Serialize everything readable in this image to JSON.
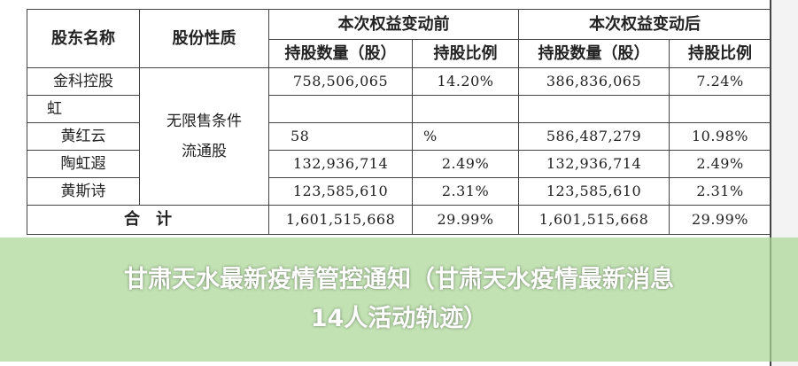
{
  "table": {
    "headers": {
      "name": "股东名称",
      "nature": "股份性质",
      "before": "本次权益变动前",
      "after": "本次权益变动后",
      "shares": "持股数量（股）",
      "ratio": "持股比例"
    },
    "nature_value_line1": "无限售条件",
    "nature_value_line2": "流通股",
    "rows": [
      {
        "name": "金科控股",
        "before_shares": "758,506,065",
        "before_ratio": "14.20%",
        "after_shares": "386,836,065",
        "after_ratio": "7.24%"
      },
      {
        "name": "虹",
        "before_shares": "",
        "before_ratio": "",
        "after_shares": "",
        "after_ratio": ""
      },
      {
        "name": "黄红云",
        "before_shares": "58",
        "before_ratio": "%",
        "after_shares": "586,487,279",
        "after_ratio": "10.98%"
      },
      {
        "name": "陶虹遐",
        "before_shares": "132,936,714",
        "before_ratio": "2.49%",
        "after_shares": "132,936,714",
        "after_ratio": "2.49%"
      },
      {
        "name": "黄斯诗",
        "before_shares": "123,585,610",
        "before_ratio": "2.31%",
        "after_shares": "123,585,610",
        "after_ratio": "2.31%"
      }
    ],
    "total": {
      "label": "合　计",
      "before_shares": "1,601,515,668",
      "before_ratio": "29.99%",
      "after_shares": "1,601,515,668",
      "after_ratio": "29.99%"
    }
  },
  "banner": {
    "line1": "甘肃天水最新疫情管控通知（甘肃天水疫情最新消息",
    "line2": "14人活动轨迹）",
    "color": "#aad796"
  }
}
